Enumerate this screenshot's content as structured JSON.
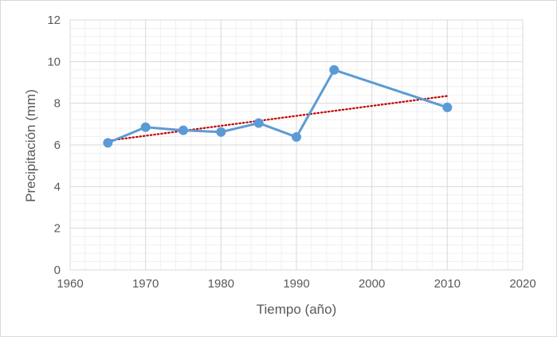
{
  "chart_data": {
    "type": "line",
    "title": "",
    "xlabel": "Tiempo (año)",
    "ylabel": "Precipitación (mm)",
    "xlim": [
      1960,
      2020
    ],
    "ylim": [
      0,
      12
    ],
    "x_ticks": [
      1960,
      1970,
      1980,
      1990,
      2000,
      2010,
      2020
    ],
    "y_ticks": [
      0,
      2,
      4,
      6,
      8,
      10,
      12
    ],
    "grid": true,
    "legend": "none",
    "series": [
      {
        "color": "#5b9bd5",
        "x": [
          1965,
          1970,
          1975,
          1980,
          1985,
          1990,
          1995,
          2010
        ],
        "y": [
          6.1,
          6.85,
          6.7,
          6.62,
          7.05,
          6.38,
          9.6,
          7.8
        ]
      }
    ],
    "trendline": {
      "type": "linear",
      "style": "dotted",
      "color": "#c00000",
      "x": [
        1965,
        2010
      ],
      "y": [
        6.2,
        8.35
      ]
    }
  }
}
